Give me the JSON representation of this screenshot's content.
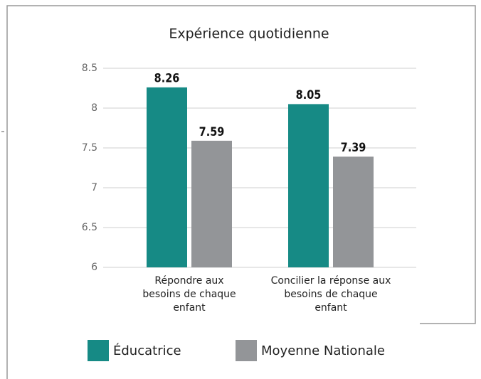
{
  "chart_data": {
    "type": "bar",
    "title": "Expérience quotidienne",
    "categories": [
      "Répondre aux besoins de chaque enfant",
      "Concilier la réponse aux besoins de chaque enfant"
    ],
    "series": [
      {
        "name": "Éducatrice",
        "color": "#168a85",
        "values": [
          8.26,
          8.05
        ]
      },
      {
        "name": "Moyenne Nationale",
        "color": "#939598",
        "values": [
          7.59,
          7.39
        ]
      }
    ],
    "ylim": [
      6,
      8.5
    ],
    "yticks": [
      6,
      6.5,
      7,
      7.5,
      8,
      8.5
    ],
    "grid": true,
    "legend": "bottom"
  }
}
